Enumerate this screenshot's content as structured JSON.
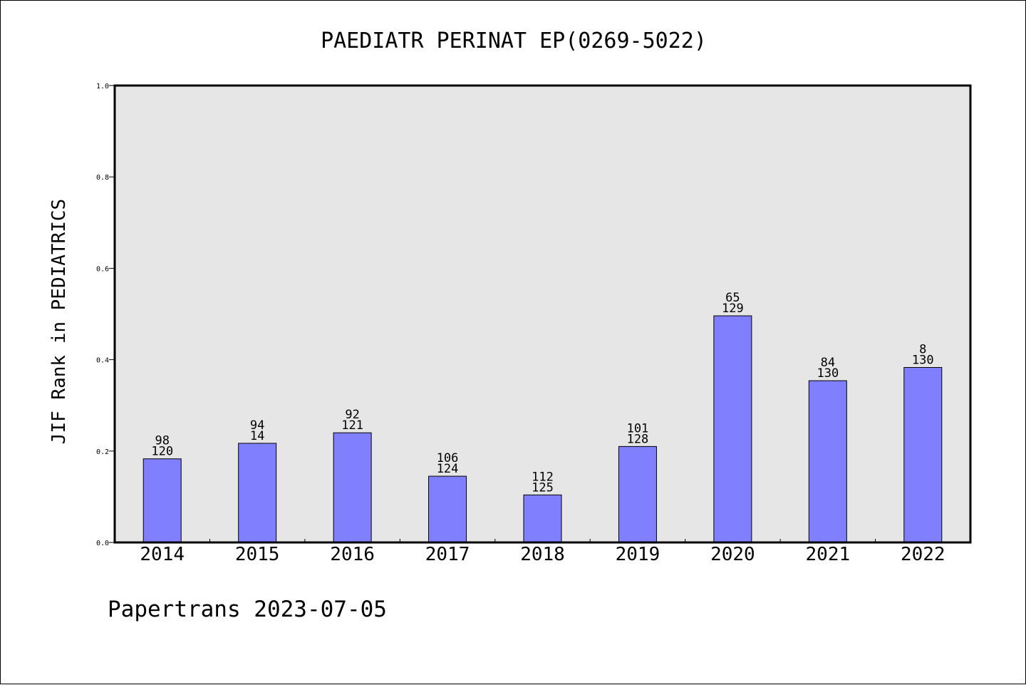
{
  "chart_data": {
    "type": "bar",
    "title": "PAEDIATR PERINAT EP(0269-5022)",
    "xlabel": "",
    "ylabel": "JIF Rank in PEDIATRICS",
    "ylim": [
      0,
      1.0
    ],
    "yticks": [
      "0.0",
      "0.2",
      "0.4",
      "0.6",
      "0.8",
      "1.0"
    ],
    "grid": false,
    "categories": [
      "2014",
      "2015",
      "2016",
      "2017",
      "2018",
      "2019",
      "2020",
      "2021",
      "2022"
    ],
    "values": [
      0.183,
      0.217,
      0.24,
      0.145,
      0.104,
      0.21,
      0.496,
      0.354,
      0.383
    ],
    "annotations": [
      {
        "rank": "98",
        "total": "120"
      },
      {
        "rank": "94",
        "total": "14"
      },
      {
        "rank": "92",
        "total": "121"
      },
      {
        "rank": "106",
        "total": "124"
      },
      {
        "rank": "112",
        "total": "125"
      },
      {
        "rank": "101",
        "total": "128"
      },
      {
        "rank": "65",
        "total": "129"
      },
      {
        "rank": "84",
        "total": "130"
      },
      {
        "rank": "8",
        "total": "130"
      }
    ],
    "colors": {
      "bar_fill": "#8080ff",
      "bar_stroke": "#000000",
      "plot_background": "#e6e6e6"
    }
  },
  "footer": "Papertrans 2023-07-05"
}
